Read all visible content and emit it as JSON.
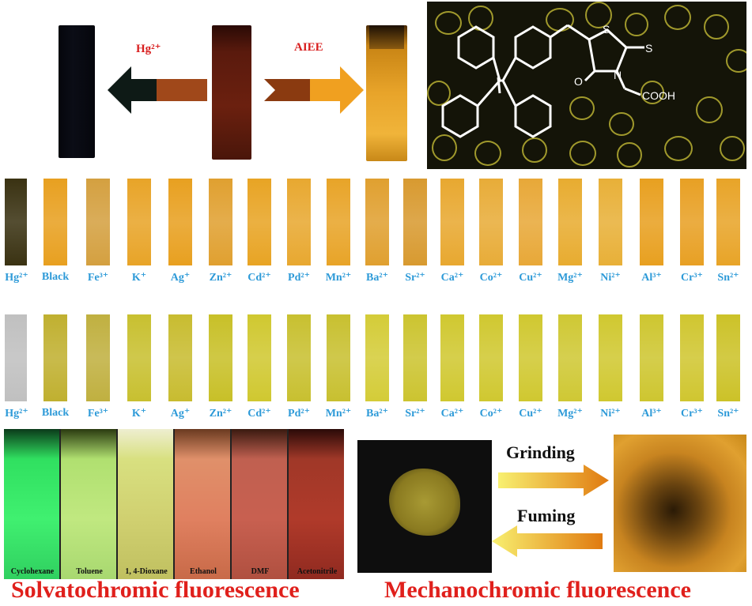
{
  "top": {
    "label_hg": "Hg²⁺",
    "label_aiee": "AIEE"
  },
  "molecule": {
    "label_s1": "S",
    "label_s2": "S",
    "label_n": "N",
    "label_o": "O",
    "label_cooh": "COOH"
  },
  "ions_row1": [
    "Hg²⁺",
    "Black",
    "Fe³⁺",
    "K⁺",
    "Ag⁺",
    "Zn²⁺",
    "Cd²⁺",
    "Pd²⁺",
    "Mn²⁺",
    "Ba²⁺",
    "Sr²⁺",
    "Ca²⁺",
    "Co²⁺",
    "Cu²⁺",
    "Mg²⁺",
    "Ni²⁺",
    "Al³⁺",
    "Cr³⁺",
    "Sn²⁺"
  ],
  "ions_row2": [
    "Hg²⁺",
    "Black",
    "Fe³⁺",
    "K⁺",
    "Ag⁺",
    "Zn²⁺",
    "Cd²⁺",
    "Pd²⁺",
    "Mn²⁺",
    "Ba²⁺",
    "Sr²⁺",
    "Ca²⁺",
    "Co²⁺",
    "Cu²⁺",
    "Mg²⁺",
    "Ni²⁺",
    "Al³⁺",
    "Cr³⁺",
    "Sn²⁺"
  ],
  "solvents": [
    "Cyclohexane",
    "Toluene",
    "1, 4-Dioxane",
    "Ethanol",
    "DMF",
    "Acetonitrile"
  ],
  "solv_title": "Solvatochromic fluorescence",
  "mech": {
    "grinding": "Grinding",
    "fuming": "Fuming",
    "title": "Mechanochromic fluorescence"
  },
  "colors": {
    "accent_red": "#e0201c",
    "label_blue": "#2d9ad8"
  }
}
